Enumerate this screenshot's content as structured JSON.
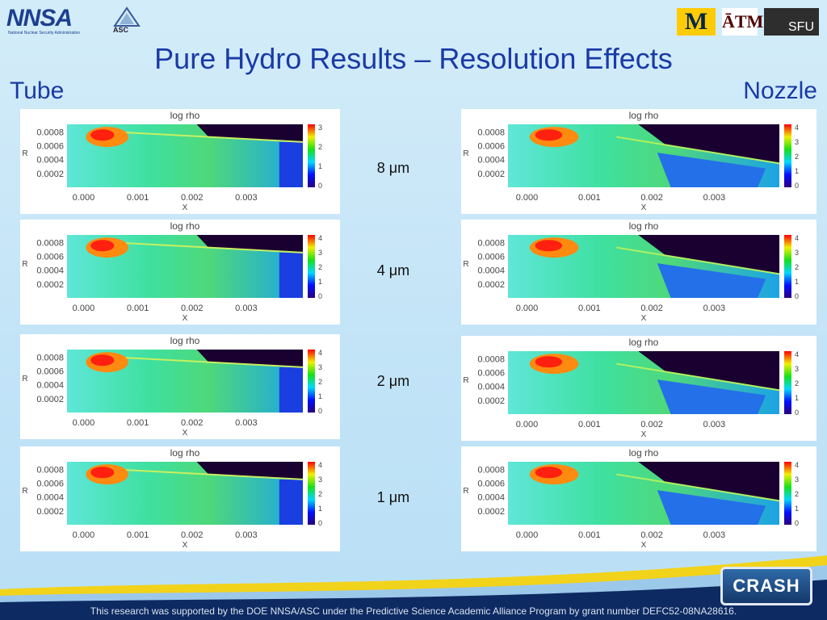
{
  "header": {
    "title": "Pure Hydro Results – Resolution Effects",
    "left_label": "Tube",
    "right_label": "Nozzle"
  },
  "logos": {
    "nnsa": "NNSA",
    "nnsa_sub": "National Nuclear Security Administration",
    "asc": "ASC",
    "michigan": "M",
    "texas_am": "ĀTM",
    "sfu": "SFU",
    "crash": "CRASH"
  },
  "plot": {
    "title": "log rho",
    "xlabel": "X",
    "ylabel": "R",
    "yticks": [
      "0.0008",
      "0.0006",
      "0.0004",
      "0.0002"
    ],
    "xticks": [
      "0.000",
      "0.001",
      "0.002",
      "0.003"
    ],
    "cbar_ticks_tube_first": [
      "3",
      "2",
      "1",
      "0"
    ],
    "cbar_ticks": [
      "4",
      "3",
      "2",
      "1",
      "0"
    ]
  },
  "resolutions": [
    "8 μm",
    "4 μm",
    "2 μm",
    "1 μm"
  ],
  "colors": {
    "title": "#1a3aa6",
    "swoosh_yellow": "#f2d31b",
    "swoosh_navy": "#0e2a63"
  },
  "footer": "This research was supported by the DOE NNSA/ASC under the Predictive Science Academic Alliance Program by grant number DEFC52-08NA28616."
}
